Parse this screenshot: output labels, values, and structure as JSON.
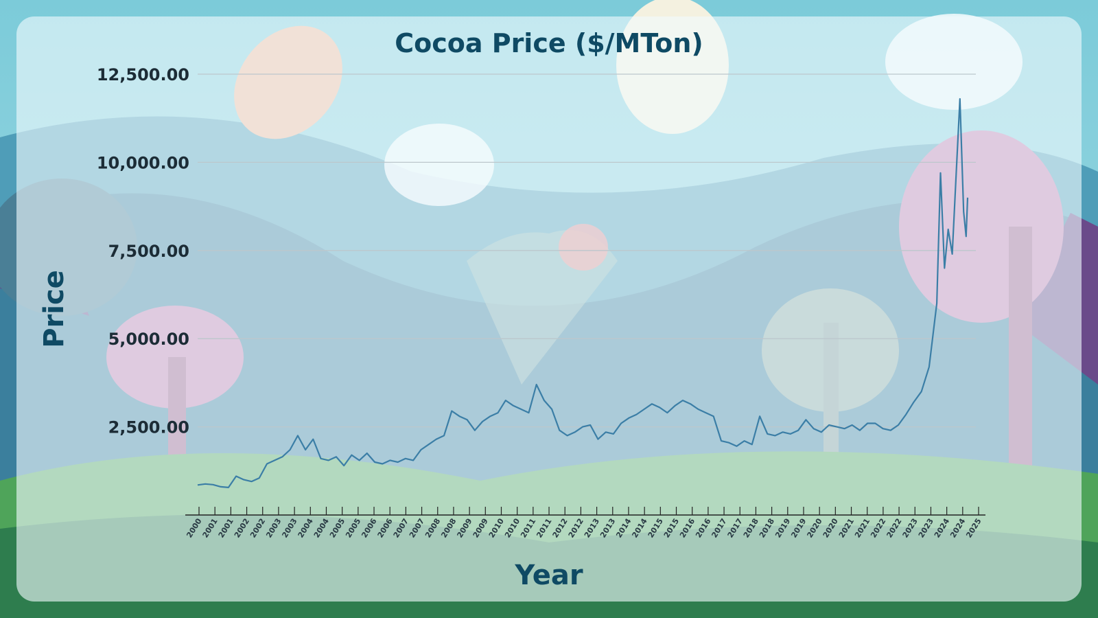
{
  "colors": {
    "line": "#3b7ea6",
    "title": "#0f4a64",
    "grid": "#bcc7cc",
    "axis": "#222222"
  },
  "chart_data": {
    "type": "line",
    "title": "Cocoa Price ($/MTon)",
    "xlabel": "Year",
    "ylabel": "Price",
    "ylim": [
      0,
      12500
    ],
    "xlim": [
      2000,
      2025
    ],
    "grid": "horizontal",
    "y_ticks": [
      "2,500.00",
      "5,000.00",
      "7,500.00",
      "10,000.00",
      "12,500.00"
    ],
    "y_tick_values": [
      2500,
      5000,
      7500,
      10000,
      12500
    ],
    "x_tick_labels": [
      "2000",
      "2001",
      "2001",
      "2002",
      "2002",
      "2003",
      "2003",
      "2004",
      "2004",
      "2005",
      "2005",
      "2006",
      "2006",
      "2007",
      "2007",
      "2008",
      "2008",
      "2009",
      "2009",
      "2010",
      "2010",
      "2011",
      "2011",
      "2012",
      "2012",
      "2013",
      "2013",
      "2014",
      "2014",
      "2015",
      "2015",
      "2016",
      "2016",
      "2017",
      "2017",
      "2018",
      "2018",
      "2019",
      "2019",
      "2020",
      "2020",
      "2021",
      "2021",
      "2022",
      "2022",
      "2023",
      "2023",
      "2024",
      "2024",
      "2025"
    ],
    "series": [
      {
        "x": [
          2000.0,
          2000.25,
          2000.5,
          2000.75,
          2001.0,
          2001.25,
          2001.5,
          2001.75,
          2002.0,
          2002.25,
          2002.5,
          2002.75,
          2003.0,
          2003.25,
          2003.5,
          2003.75,
          2004.0,
          2004.25,
          2004.5,
          2004.75,
          2005.0,
          2005.25,
          2005.5,
          2005.75,
          2006.0,
          2006.25,
          2006.5,
          2006.75,
          2007.0,
          2007.25,
          2007.5,
          2007.75,
          2008.0,
          2008.25,
          2008.5,
          2008.75,
          2009.0,
          2009.25,
          2009.5,
          2009.75,
          2010.0,
          2010.25,
          2010.5,
          2010.75,
          2011.0,
          2011.25,
          2011.5,
          2011.75,
          2012.0,
          2012.25,
          2012.5,
          2012.75,
          2013.0,
          2013.25,
          2013.5,
          2013.75,
          2014.0,
          2014.25,
          2014.5,
          2014.75,
          2015.0,
          2015.25,
          2015.5,
          2015.75,
          2016.0,
          2016.25,
          2016.5,
          2016.75,
          2017.0,
          2017.25,
          2017.5,
          2017.75,
          2018.0,
          2018.25,
          2018.5,
          2018.75,
          2019.0,
          2019.25,
          2019.5,
          2019.75,
          2020.0,
          2020.25,
          2020.5,
          2020.75,
          2021.0,
          2021.25,
          2021.5,
          2021.75,
          2022.0,
          2022.25,
          2022.5,
          2022.75,
          2023.0,
          2023.25,
          2023.5,
          2023.75,
          2024.0,
          2024.12,
          2024.25,
          2024.37,
          2024.5,
          2024.62,
          2024.75,
          2024.87,
          2024.95,
          2025.0
        ],
        "values": [
          850,
          880,
          860,
          800,
          780,
          1100,
          1000,
          950,
          1050,
          1450,
          1550,
          1650,
          1850,
          2250,
          1850,
          2150,
          1600,
          1550,
          1650,
          1400,
          1700,
          1550,
          1750,
          1500,
          1450,
          1550,
          1500,
          1600,
          1550,
          1850,
          2000,
          2150,
          2250,
          2950,
          2800,
          2700,
          2400,
          2650,
          2800,
          2900,
          3250,
          3100,
          3000,
          2900,
          3700,
          3250,
          3000,
          2400,
          2250,
          2350,
          2500,
          2550,
          2150,
          2350,
          2300,
          2600,
          2750,
          2850,
          3000,
          3150,
          3050,
          2900,
          3100,
          3250,
          3150,
          3000,
          2900,
          2800,
          2100,
          2050,
          1950,
          2100,
          2000,
          2800,
          2300,
          2250,
          2350,
          2300,
          2400,
          2700,
          2450,
          2350,
          2550,
          2500,
          2450,
          2550,
          2400,
          2600,
          2600,
          2450,
          2400,
          2550,
          2850,
          3200,
          3500,
          4200,
          6000,
          9700,
          7000,
          8100,
          7400,
          9500,
          11800,
          8600,
          7900,
          9000
        ]
      }
    ]
  }
}
